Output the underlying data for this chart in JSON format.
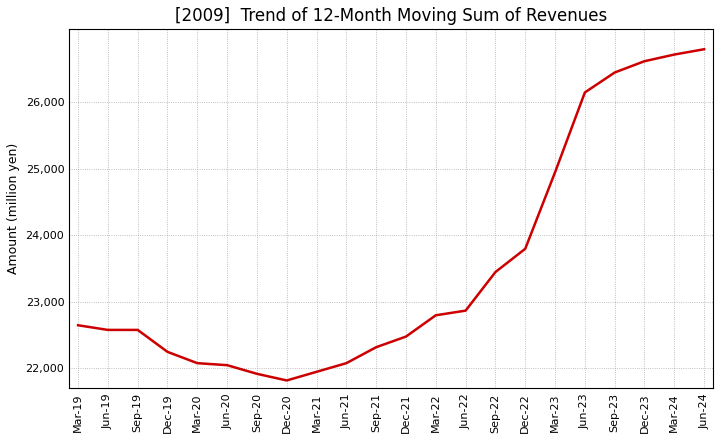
{
  "title": "[2009]  Trend of 12-Month Moving Sum of Revenues",
  "ylabel": "Amount (million yen)",
  "line_color": "#cc0000",
  "background_color": "#ffffff",
  "grid_color": "#888888",
  "x_labels": [
    "Mar-19",
    "Jun-19",
    "Sep-19",
    "Dec-19",
    "Mar-20",
    "Jun-20",
    "Sep-20",
    "Dec-20",
    "Mar-21",
    "Jun-21",
    "Sep-21",
    "Dec-21",
    "Mar-22",
    "Jun-22",
    "Sep-22",
    "Dec-22",
    "Mar-23",
    "Jun-23",
    "Sep-23",
    "Dec-23",
    "Mar-24",
    "Jun-24"
  ],
  "values": [
    22650,
    22580,
    22580,
    22250,
    22080,
    22050,
    21920,
    21820,
    21950,
    22080,
    22320,
    22480,
    22800,
    22870,
    23450,
    23800,
    24950,
    26150,
    26450,
    26620,
    26720,
    26800
  ],
  "ylim": [
    21700,
    27100
  ],
  "yticks": [
    22000,
    23000,
    24000,
    25000,
    26000
  ],
  "title_fontsize": 12,
  "ylabel_fontsize": 9,
  "tick_fontsize": 8,
  "line_width": 1.8
}
